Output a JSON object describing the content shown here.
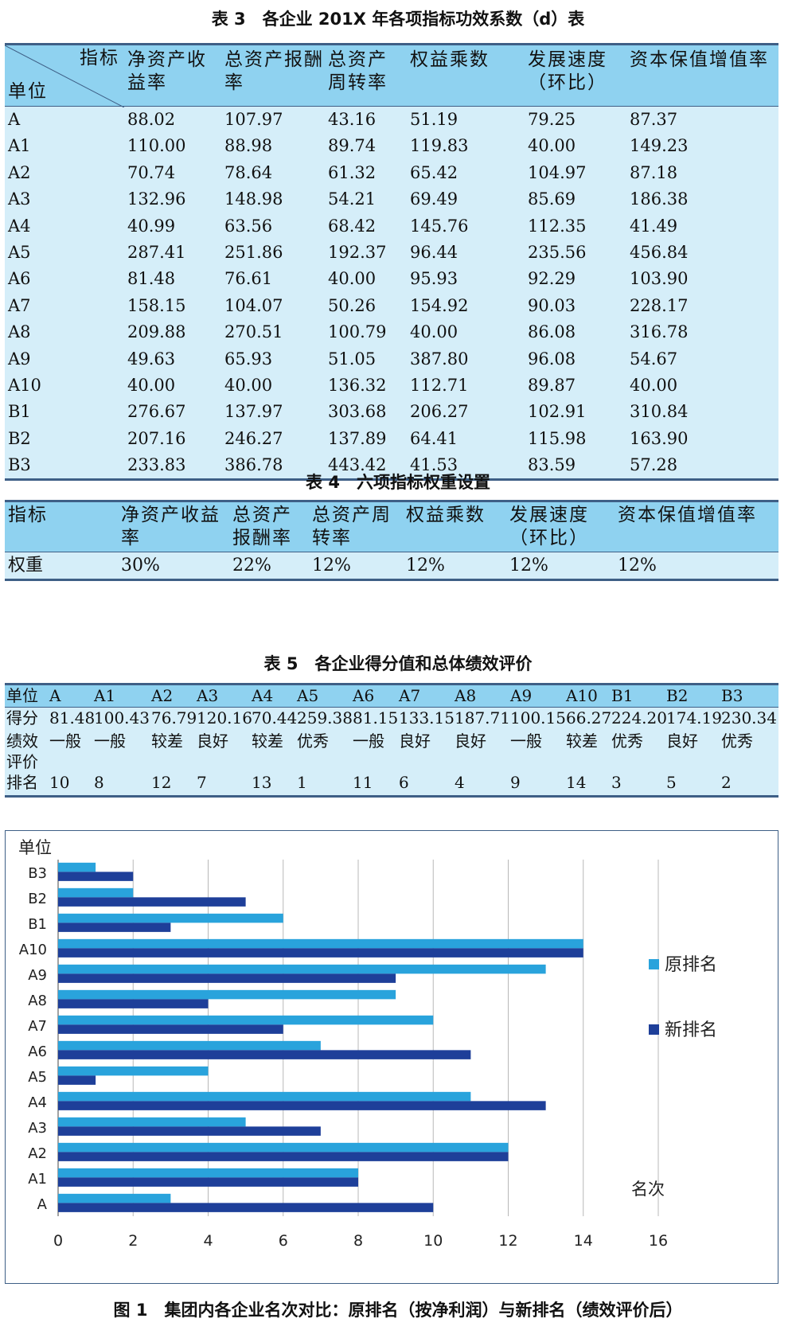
{
  "table3": {
    "caption": "表 3　各企业 201X 年各项指标功效系数（d）表",
    "corner_top": "指标",
    "corner_bottom": "单位",
    "headers": [
      "净资产收益率",
      "总资产报酬率",
      "总资产周转率",
      "权益乘数",
      "发展速度（环比）",
      "资本保值增值率"
    ],
    "rows": [
      [
        "A",
        "88.02",
        "107.97",
        "43.16",
        "51.19",
        "79.25",
        "87.37"
      ],
      [
        "A1",
        "110.00",
        "88.98",
        "89.74",
        "119.83",
        "40.00",
        "149.23"
      ],
      [
        "A2",
        "70.74",
        "78.64",
        "61.32",
        "65.42",
        "104.97",
        "87.18"
      ],
      [
        "A3",
        "132.96",
        "148.98",
        "54.21",
        "69.49",
        "85.69",
        "186.38"
      ],
      [
        "A4",
        "40.99",
        "63.56",
        "68.42",
        "145.76",
        "112.35",
        "41.49"
      ],
      [
        "A5",
        "287.41",
        "251.86",
        "192.37",
        "96.44",
        "235.56",
        "456.84"
      ],
      [
        "A6",
        "81.48",
        "76.61",
        "40.00",
        "95.93",
        "92.29",
        "103.90"
      ],
      [
        "A7",
        "158.15",
        "104.07",
        "50.26",
        "154.92",
        "90.03",
        "228.17"
      ],
      [
        "A8",
        "209.88",
        "270.51",
        "100.79",
        "40.00",
        "86.08",
        "316.78"
      ],
      [
        "A9",
        "49.63",
        "65.93",
        "51.05",
        "387.80",
        "96.08",
        "54.67"
      ],
      [
        "A10",
        "40.00",
        "40.00",
        "136.32",
        "112.71",
        "89.87",
        "40.00"
      ],
      [
        "B1",
        "276.67",
        "137.97",
        "303.68",
        "206.27",
        "102.91",
        "310.84"
      ],
      [
        "B2",
        "207.16",
        "246.27",
        "137.89",
        "64.41",
        "115.98",
        "163.90"
      ],
      [
        "B3",
        "233.83",
        "386.78",
        "443.42",
        "41.53",
        "83.59",
        "57.28"
      ]
    ]
  },
  "table4": {
    "caption": "表 4　六项指标权重设置",
    "headers": [
      "指标",
      "净资产收益率",
      "总资产报酬率",
      "总资产周转率",
      "权益乘数",
      "发展速度（环比）",
      "资本保值增值率"
    ],
    "row": [
      "权重",
      "30%",
      "22%",
      "12%",
      "12%",
      "12%",
      "12%"
    ]
  },
  "table5": {
    "caption": "表 5　各企业得分值和总体绩效评价",
    "header_label": "单位",
    "units": [
      "A",
      "A1",
      "A2",
      "A3",
      "A4",
      "A5",
      "A6",
      "A7",
      "A8",
      "A9",
      "A10",
      "B1",
      "B2",
      "B3"
    ],
    "score_label": "得分",
    "scores": [
      "81.48",
      "100.43",
      "76.79",
      "120.16",
      "70.44",
      "259.38",
      "81.15",
      "133.15",
      "187.71",
      "100.15",
      "66.27",
      "224.20",
      "174.19",
      "230.34"
    ],
    "eval_label_1": "绩效",
    "eval_label_2": "评价",
    "evals": [
      "一般",
      "一般",
      "较差",
      "良好",
      "较差",
      "优秀",
      "一般",
      "良好",
      "良好",
      "一般",
      "较差",
      "优秀",
      "良好",
      "优秀"
    ],
    "rank_label": "排名",
    "ranks": [
      "10",
      "8",
      "12",
      "7",
      "13",
      "1",
      "11",
      "6",
      "4",
      "9",
      "14",
      "3",
      "5",
      "2"
    ]
  },
  "chart_data": {
    "type": "bar",
    "orientation": "horizontal",
    "title": "",
    "caption": "图 1　集团内各企业名次对比：原排名（按净利润）与新排名（绩效评价后）",
    "ylabel": "单位",
    "xlabel": "名次",
    "categories": [
      "A",
      "A1",
      "A2",
      "A3",
      "A4",
      "A5",
      "A6",
      "A7",
      "A8",
      "A9",
      "A10",
      "B1",
      "B2",
      "B3"
    ],
    "series": [
      {
        "name": "原排名",
        "color": "#29a3dc",
        "values": [
          3,
          8,
          12,
          5,
          11,
          4,
          7,
          10,
          9,
          13,
          14,
          6,
          2,
          1
        ]
      },
      {
        "name": "新排名",
        "color": "#1e3f99",
        "values": [
          10,
          8,
          12,
          7,
          13,
          1,
          11,
          6,
          4,
          9,
          14,
          3,
          5,
          2
        ]
      }
    ],
    "xlim": [
      0,
      16
    ],
    "xticks": [
      "0",
      "2",
      "4",
      "6",
      "8",
      "10",
      "12",
      "14",
      "16"
    ],
    "grid": true,
    "legend_position": "right"
  }
}
